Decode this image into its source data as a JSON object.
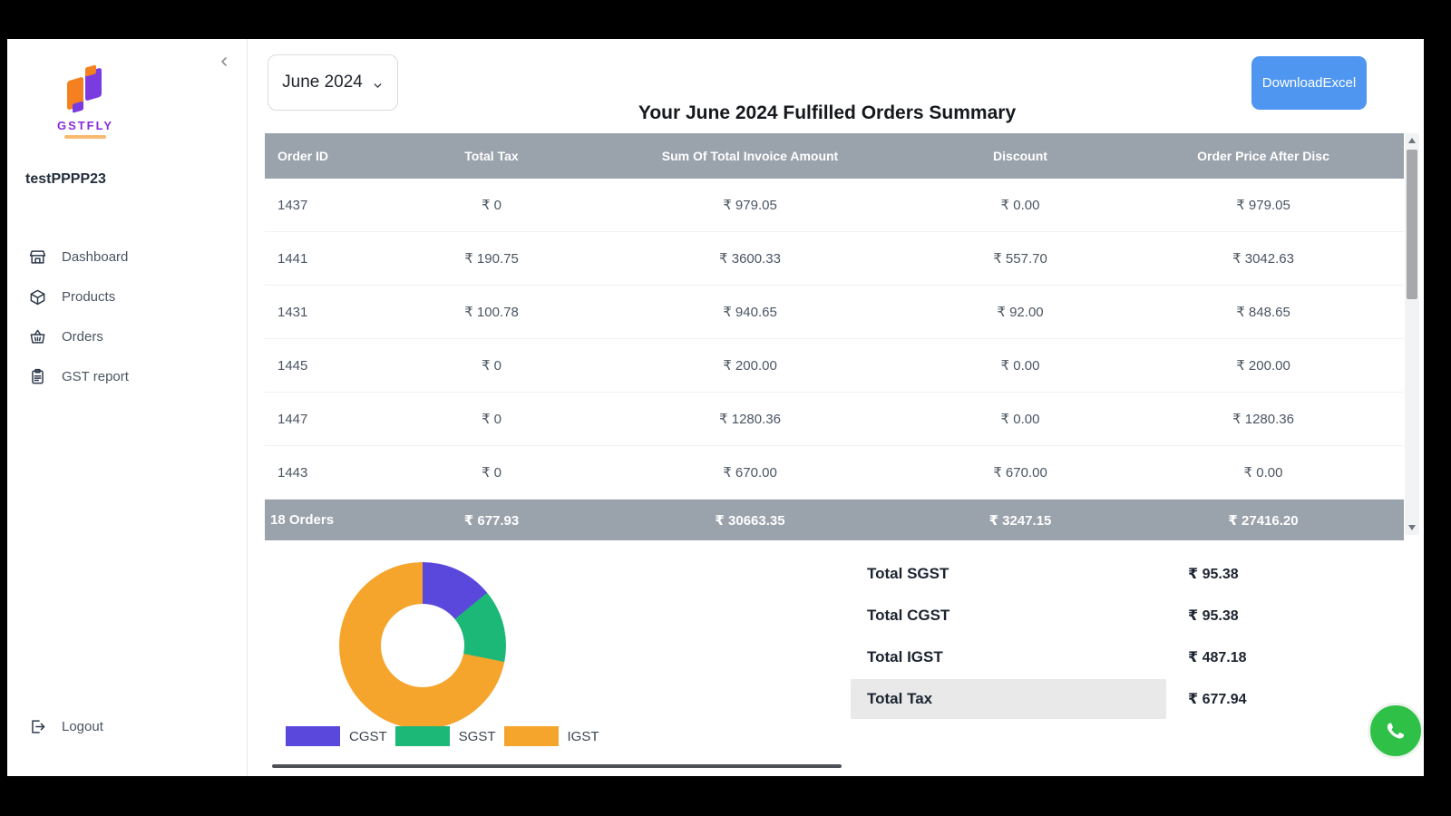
{
  "sidebar": {
    "logo_text": "GSTFLY",
    "username": "testPPPP23",
    "items": [
      {
        "icon": "store-icon",
        "label": "Dashboard"
      },
      {
        "icon": "products-icon",
        "label": "Products"
      },
      {
        "icon": "basket-icon",
        "label": "Orders"
      },
      {
        "icon": "report-icon",
        "label": "GST report"
      }
    ],
    "logout_label": "Logout"
  },
  "header": {
    "month_select_value": "June 2024",
    "download_button_label": "DownloadExcel",
    "title": "Your June 2024 Fulfilled Orders Summary"
  },
  "table": {
    "columns": [
      "Order ID",
      "Total Tax",
      "Sum Of Total Invoice Amount",
      "Discount",
      "Order Price After Disc"
    ],
    "rows": [
      [
        "1437",
        "₹ 0",
        "₹ 979.05",
        "₹ 0.00",
        "₹ 979.05"
      ],
      [
        "1441",
        "₹ 190.75",
        "₹ 3600.33",
        "₹ 557.70",
        "₹ 3042.63"
      ],
      [
        "1431",
        "₹ 100.78",
        "₹ 940.65",
        "₹ 92.00",
        "₹ 848.65"
      ],
      [
        "1445",
        "₹ 0",
        "₹ 200.00",
        "₹ 0.00",
        "₹ 200.00"
      ],
      [
        "1447",
        "₹ 0",
        "₹ 1280.36",
        "₹ 0.00",
        "₹ 1280.36"
      ],
      [
        "1443",
        "₹ 0",
        "₹ 670.00",
        "₹ 670.00",
        "₹ 0.00"
      ]
    ],
    "footer": [
      "18 Orders",
      "₹ 677.93",
      "₹ 30663.35",
      "₹ 3247.15",
      "₹ 27416.20"
    ]
  },
  "chart_data": {
    "type": "pie",
    "subtype": "donut",
    "categories": [
      "CGST",
      "SGST",
      "IGST"
    ],
    "values": [
      95.38,
      95.38,
      487.18
    ],
    "colors": [
      "#5a47db",
      "#1cb878",
      "#f5a42c"
    ],
    "legend_position": "bottom",
    "title": ""
  },
  "totals": {
    "rows": [
      {
        "label": "Total SGST",
        "value": "₹ 95.38",
        "highlight": false
      },
      {
        "label": "Total CGST",
        "value": "₹ 95.38",
        "highlight": false
      },
      {
        "label": "Total IGST",
        "value": "₹ 487.18",
        "highlight": false
      },
      {
        "label": "Total Tax",
        "value": "₹ 677.94",
        "highlight": true
      }
    ]
  },
  "colors": {
    "table_header_bg": "#9aa2ac",
    "download_button_bg": "#4e96f0",
    "whatsapp_green": "#2fc147",
    "logo_purple": "#8a2bd9",
    "logo_orange": "#f4801f"
  }
}
